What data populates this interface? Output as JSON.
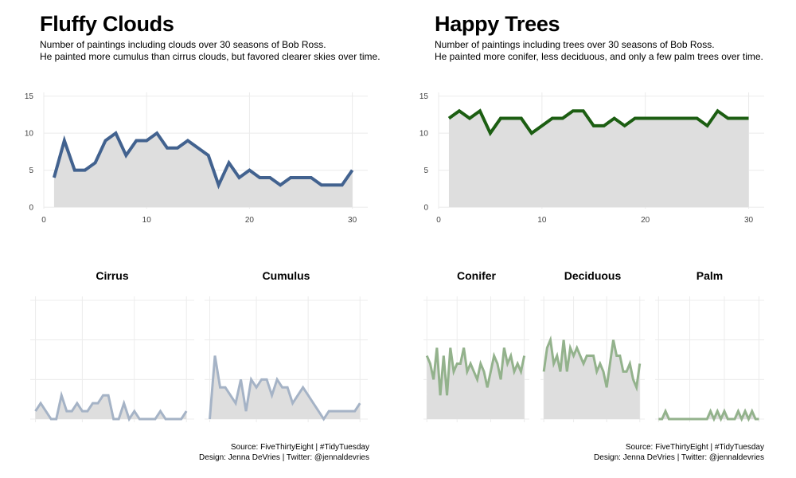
{
  "chart_data": [
    {
      "id": "clouds",
      "type": "area",
      "title": "Fluffy Clouds",
      "subtitle": [
        "Number of paintings including clouds over 30 seasons of Bob Ross.",
        "He painted more cumulus than cirrus clouds, but favored clearer skies over time."
      ],
      "source": [
        "Source: FiveThirtyEight | #TidyTuesday",
        "Design: Jenna DeVries | Twitter: @jennaldevries"
      ],
      "main": {
        "series": [
          {
            "x": [
              1,
              2,
              3,
              4,
              5,
              6,
              7,
              8,
              9,
              10,
              11,
              12,
              13,
              14,
              15,
              16,
              17,
              18,
              19,
              20,
              21,
              22,
              23,
              24,
              25,
              26,
              27,
              28,
              29,
              30
            ],
            "values": [
              4,
              9,
              5,
              5,
              6,
              9,
              10,
              7,
              9,
              9,
              10,
              8,
              8,
              9,
              8,
              7,
              3,
              6,
              4,
              5,
              4,
              4,
              3,
              4,
              4,
              4,
              3,
              3,
              3,
              5
            ],
            "color": "#42628f"
          }
        ],
        "xlim": [
          0,
          31.5
        ],
        "ylim": [
          -0.2,
          15.5
        ],
        "xticks": [
          0,
          10,
          20,
          30
        ],
        "yticks": [
          0,
          5,
          10,
          15
        ],
        "area_color": "#dedede",
        "grid": true
      },
      "facets": [
        {
          "name": "Cirrus",
          "x": [
            1,
            2,
            3,
            4,
            5,
            6,
            7,
            8,
            9,
            10,
            11,
            12,
            13,
            14,
            15,
            16,
            17,
            18,
            19,
            20,
            21,
            22,
            23,
            24,
            25,
            26,
            27,
            28,
            29,
            30
          ],
          "values": [
            1,
            2,
            1,
            0,
            0,
            3,
            1,
            1,
            2,
            1,
            1,
            2,
            2,
            3,
            3,
            0,
            0,
            2,
            0,
            1,
            0,
            0,
            0,
            0,
            1,
            0,
            0,
            0,
            0,
            1
          ],
          "color": "#a5b3c6"
        },
        {
          "name": "Cumulus",
          "x": [
            1,
            2,
            3,
            4,
            5,
            6,
            7,
            8,
            9,
            10,
            11,
            12,
            13,
            14,
            15,
            16,
            17,
            18,
            19,
            20,
            21,
            22,
            23,
            24,
            25,
            26,
            27,
            28,
            29,
            30
          ],
          "values": [
            0,
            8,
            4,
            4,
            3,
            2,
            5,
            1,
            5,
            4,
            5,
            5,
            3,
            5,
            4,
            4,
            2,
            3,
            4,
            3,
            2,
            1,
            0,
            1,
            1,
            1,
            1,
            1,
            1,
            2
          ],
          "color": "#a5b3c6"
        }
      ],
      "facet_ylim": [
        -0.4,
        15.5
      ],
      "facet_xlim": [
        0,
        31.5
      ],
      "facet_grid_x": [
        1,
        10,
        20,
        30
      ],
      "facet_grid_y": [
        0,
        5,
        10,
        15
      ]
    },
    {
      "id": "trees",
      "type": "area",
      "title": "Happy Trees",
      "subtitle": [
        "Number of paintings including trees over 30 seasons of Bob Ross.",
        "He painted more conifer, less deciduous, and only a few palm trees over time."
      ],
      "source": [
        "Source: FiveThirtyEight | #TidyTuesday",
        "Design: Jenna DeVries | Twitter: @jennaldevries"
      ],
      "main": {
        "series": [
          {
            "x": [
              1,
              2,
              3,
              4,
              5,
              6,
              7,
              8,
              9,
              10,
              11,
              12,
              13,
              14,
              15,
              16,
              17,
              18,
              19,
              20,
              21,
              22,
              23,
              24,
              25,
              26,
              27,
              28,
              29,
              30
            ],
            "values": [
              12,
              13,
              12,
              13,
              10,
              12,
              12,
              12,
              10,
              11,
              12,
              12,
              13,
              13,
              11,
              11,
              12,
              11,
              12,
              12,
              12,
              12,
              12,
              12,
              12,
              11,
              13,
              12,
              12,
              12
            ],
            "color": "#1c5e12"
          }
        ],
        "xlim": [
          0,
          31.5
        ],
        "ylim": [
          -0.2,
          15.5
        ],
        "xticks": [
          0,
          10,
          20,
          30
        ],
        "yticks": [
          0,
          5,
          10,
          15
        ],
        "area_color": "#dedede",
        "grid": true
      },
      "facets": [
        {
          "name": "Conifer",
          "x": [
            1,
            2,
            3,
            4,
            5,
            6,
            7,
            8,
            9,
            10,
            11,
            12,
            13,
            14,
            15,
            16,
            17,
            18,
            19,
            20,
            21,
            22,
            23,
            24,
            25,
            26,
            27,
            28,
            29,
            30
          ],
          "values": [
            8,
            7,
            5,
            9,
            3,
            8,
            3,
            9,
            6,
            7,
            7,
            9,
            6,
            7,
            6,
            5,
            7,
            6,
            4,
            6,
            8,
            7,
            5,
            9,
            7,
            8,
            6,
            7,
            6,
            8
          ],
          "color": "#93b28c"
        },
        {
          "name": "Deciduous",
          "x": [
            1,
            2,
            3,
            4,
            5,
            6,
            7,
            8,
            9,
            10,
            11,
            12,
            13,
            14,
            15,
            16,
            17,
            18,
            19,
            20,
            21,
            22,
            23,
            24,
            25,
            26,
            27,
            28,
            29,
            30
          ],
          "values": [
            6,
            9,
            10,
            7,
            8,
            6,
            10,
            6,
            9,
            8,
            9,
            8,
            7,
            8,
            8,
            8,
            6,
            7,
            6,
            4,
            7,
            10,
            8,
            8,
            6,
            6,
            7,
            5,
            4,
            7
          ],
          "color": "#93b28c"
        },
        {
          "name": "Palm",
          "x": [
            1,
            2,
            3,
            4,
            5,
            6,
            7,
            8,
            9,
            10,
            11,
            12,
            13,
            14,
            15,
            16,
            17,
            18,
            19,
            20,
            21,
            22,
            23,
            24,
            25,
            26,
            27,
            28,
            29,
            30
          ],
          "values": [
            0,
            0,
            1,
            0,
            0,
            0,
            0,
            0,
            0,
            0,
            0,
            0,
            0,
            0,
            0,
            1,
            0,
            1,
            0,
            1,
            0,
            0,
            0,
            1,
            0,
            1,
            0,
            1,
            0,
            0
          ],
          "color": "#93b28c"
        }
      ],
      "facet_ylim": [
        -0.4,
        15.5
      ],
      "facet_xlim": [
        0,
        31.5
      ],
      "facet_grid_x": [
        1,
        10,
        20,
        30
      ],
      "facet_grid_y": [
        0,
        5,
        10,
        15
      ]
    }
  ]
}
